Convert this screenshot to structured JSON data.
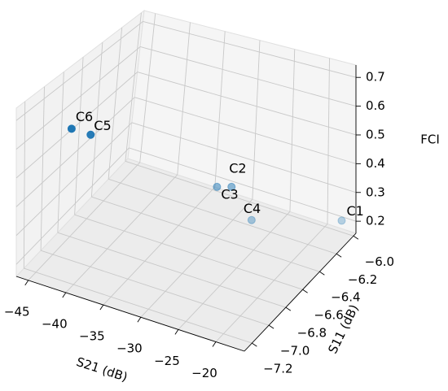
{
  "chart_data": {
    "type": "scatter3d",
    "labels": [
      "C1",
      "C2",
      "C3",
      "C4",
      "C5",
      "C6"
    ],
    "x": [
      -18,
      -29.7,
      -31.2,
      -27,
      -44.1,
      -46.1
    ],
    "y": [
      -5.98,
      -6.26,
      -6.3,
      -6.25,
      -6.68,
      -6.73
    ],
    "z": [
      0.19,
      0.3,
      0.3,
      0.2,
      0.5,
      0.52
    ],
    "color": "#1f77b4",
    "xlabel": "S21 (dB)",
    "ylabel": "S11 (dB)",
    "zlabel": "FCI",
    "xlim": [
      -46.6,
      -16.2
    ],
    "ylim": [
      -7.29,
      -5.97
    ],
    "zlim": [
      0.158,
      0.743
    ],
    "xticks": [
      {
        "value": -45,
        "label": "−45"
      },
      {
        "value": -40,
        "label": "−40"
      },
      {
        "value": -35,
        "label": "−35"
      },
      {
        "value": -30,
        "label": "−30"
      },
      {
        "value": -25,
        "label": "−25"
      },
      {
        "value": -20,
        "label": "−20"
      }
    ],
    "yticks": [
      {
        "value": -7.2,
        "label": "−7.2"
      },
      {
        "value": -7.0,
        "label": "−7.0"
      },
      {
        "value": -6.8,
        "label": "−6.8"
      },
      {
        "value": -6.6,
        "label": "−6.6"
      },
      {
        "value": -6.4,
        "label": "−6.4"
      },
      {
        "value": -6.2,
        "label": "−6.2"
      },
      {
        "value": -6.0,
        "label": "−6.0"
      }
    ],
    "zticks": [
      0.2,
      0.3,
      0.4,
      0.5,
      0.6,
      0.7
    ],
    "grid": true
  }
}
